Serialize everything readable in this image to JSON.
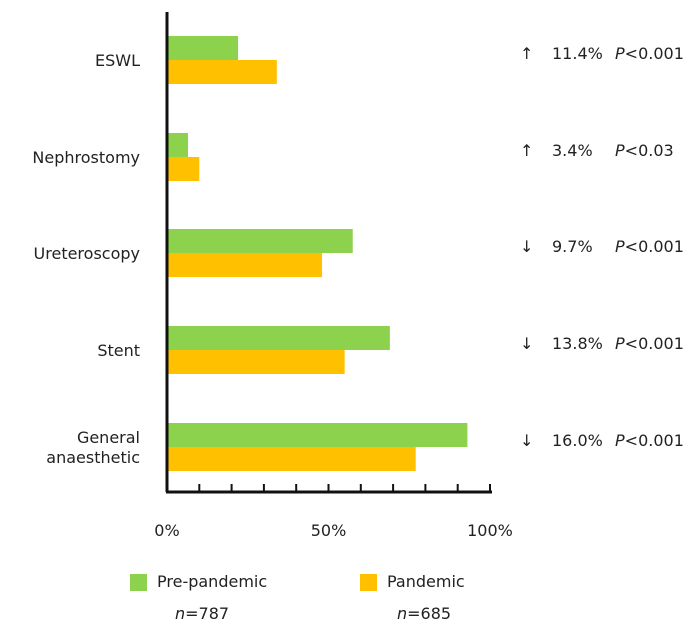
{
  "colors": {
    "pre_pandemic": "#8cd24c",
    "pandemic": "#ffc000",
    "axis": "#111111",
    "text": "#222222"
  },
  "chart_data": {
    "type": "bar",
    "orientation": "horizontal",
    "title": "",
    "xlabel": "",
    "ylabel": "",
    "xlim": [
      0,
      100
    ],
    "x_tick_labels": [
      "0%",
      "50%",
      "100%"
    ],
    "minor_tick_step": 10,
    "grid": false,
    "legend_position": "bottom",
    "categories": [
      "ESWL",
      "Nephrostomy",
      "Ureteroscopy",
      "Stent",
      "General anaesthetic"
    ],
    "category_lines": [
      [
        "ESWL"
      ],
      [
        "Nephrostomy"
      ],
      [
        "Ureteroscopy"
      ],
      [
        "Stent"
      ],
      [
        "General",
        "anaesthetic"
      ]
    ],
    "series": [
      {
        "name": "Pre-pandemic",
        "n_prefix": "n",
        "n_value": "=787",
        "values": [
          22,
          6.5,
          57.5,
          69,
          93
        ]
      },
      {
        "name": "Pandemic",
        "n_prefix": "n",
        "n_value": "=685",
        "values": [
          34,
          10,
          48,
          55,
          77
        ]
      }
    ],
    "annotations": [
      {
        "arrow": "↑",
        "change": "11.4%",
        "p_label": "P",
        "p_value": "<0.001"
      },
      {
        "arrow": "↑",
        "change": "3.4%",
        "p_label": "P",
        "p_value": "<0.03"
      },
      {
        "arrow": "↓",
        "change": "9.7%",
        "p_label": "P",
        "p_value": "<0.001"
      },
      {
        "arrow": "↓",
        "change": "13.8%",
        "p_label": "P",
        "p_value": "<0.001"
      },
      {
        "arrow": "↓",
        "change": "16.0%",
        "p_label": "P",
        "p_value": "<0.001"
      }
    ]
  }
}
